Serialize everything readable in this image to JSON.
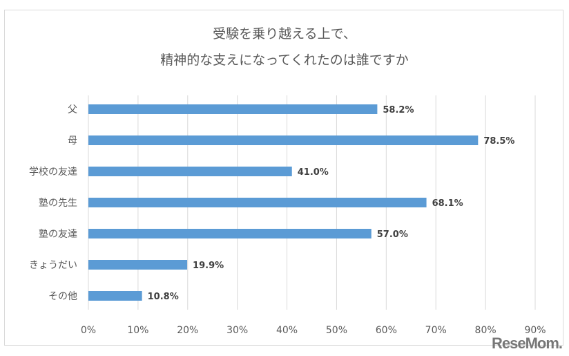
{
  "chart_data": {
    "type": "bar",
    "orientation": "horizontal",
    "title_lines": [
      "受験を乗り越える上で、",
      "精神的な支えになってくれたのは誰ですか"
    ],
    "categories": [
      "父",
      "母",
      "学校の友達",
      "塾の先生",
      "塾の友達",
      "きょうだい",
      "その他"
    ],
    "values": [
      58.2,
      78.5,
      41.0,
      68.1,
      57.0,
      19.9,
      10.8
    ],
    "data_labels": [
      "58.2%",
      "78.5%",
      "41.0%",
      "68.1%",
      "57.0%",
      "19.9%",
      "10.8%"
    ],
    "xlim": [
      0,
      90
    ],
    "ticks": [
      "0%",
      "10%",
      "20%",
      "30%",
      "40%",
      "50%",
      "60%",
      "70%",
      "80%",
      "90%"
    ],
    "grid": true,
    "bar_color": "#5b9bd5"
  },
  "watermark": "ReseMom"
}
